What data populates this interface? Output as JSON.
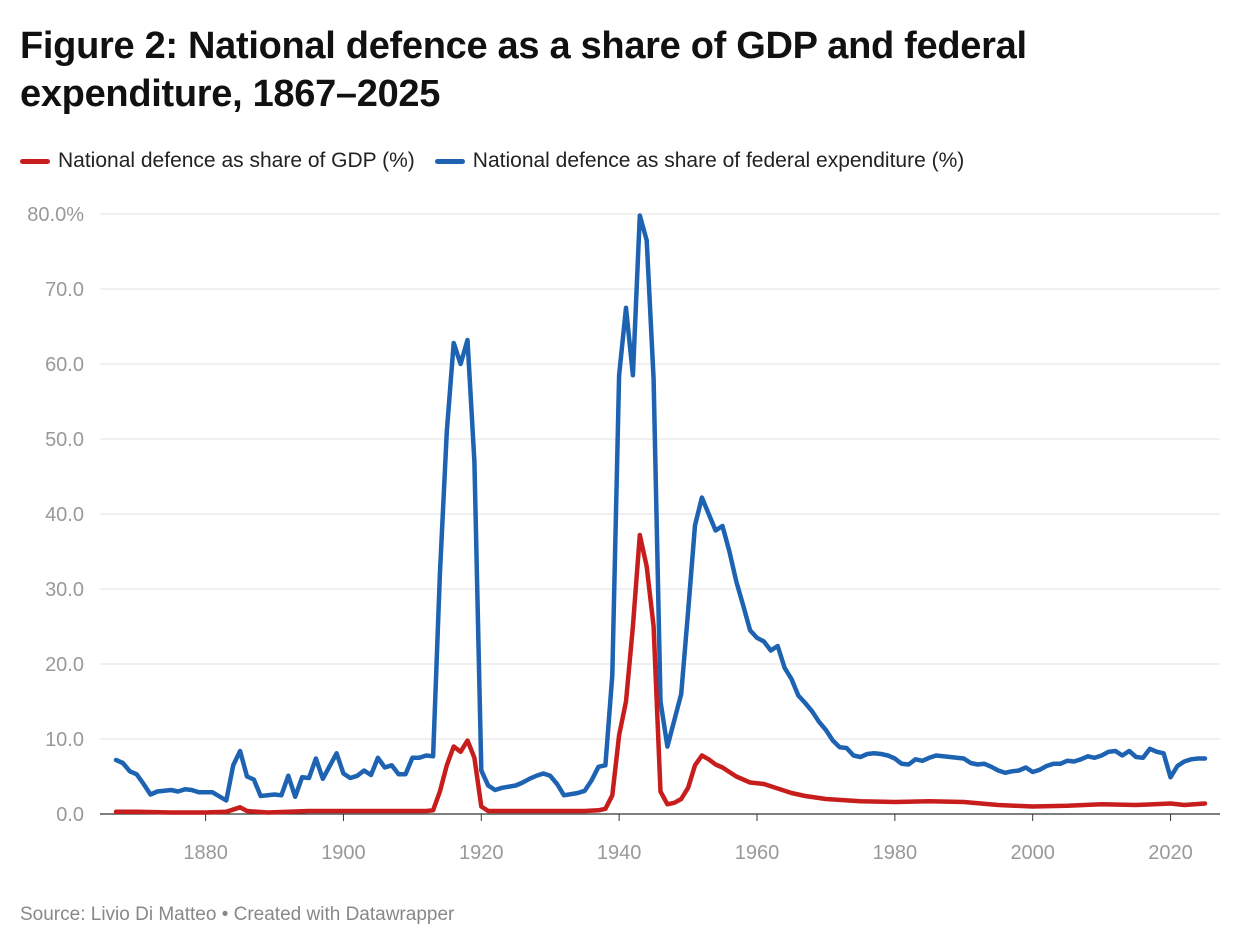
{
  "title": "Figure 2: National defence as a share of GDP and federal expenditure, 1867–2025",
  "source": "Source: Livio Di Matteo • Created with Datawrapper",
  "chart_data": {
    "type": "line",
    "title": "Figure 2: National defence as a share of GDP and federal expenditure, 1867–2025",
    "xlim": [
      1867,
      2025
    ],
    "ylim": [
      0,
      80
    ],
    "grid": true,
    "legend": "top-left",
    "xticks": [
      1880,
      1900,
      1920,
      1940,
      1960,
      1980,
      2000,
      2020
    ],
    "yticks": [
      {
        "v": 0,
        "label": "0.0"
      },
      {
        "v": 10,
        "label": "10.0"
      },
      {
        "v": 20,
        "label": "20.0"
      },
      {
        "v": 30,
        "label": "30.0"
      },
      {
        "v": 40,
        "label": "40.0"
      },
      {
        "v": 50,
        "label": "50.0"
      },
      {
        "v": 60,
        "label": "60.0"
      },
      {
        "v": 70,
        "label": "70.0"
      },
      {
        "v": 80,
        "label": "80.0%"
      }
    ],
    "series": [
      {
        "name": "National defence as share of GDP (%)",
        "color": "#c71e1d",
        "points": [
          [
            1867,
            0.3
          ],
          [
            1870,
            0.3
          ],
          [
            1875,
            0.2
          ],
          [
            1880,
            0.2
          ],
          [
            1883,
            0.3
          ],
          [
            1885,
            0.9
          ],
          [
            1886,
            0.4
          ],
          [
            1889,
            0.2
          ],
          [
            1892,
            0.3
          ],
          [
            1895,
            0.4
          ],
          [
            1900,
            0.4
          ],
          [
            1905,
            0.4
          ],
          [
            1910,
            0.4
          ],
          [
            1912,
            0.4
          ],
          [
            1913,
            0.5
          ],
          [
            1914,
            3.0
          ],
          [
            1915,
            6.5
          ],
          [
            1916,
            9.0
          ],
          [
            1917,
            8.3
          ],
          [
            1918,
            9.8
          ],
          [
            1919,
            7.5
          ],
          [
            1920,
            1.0
          ],
          [
            1921,
            0.4
          ],
          [
            1925,
            0.4
          ],
          [
            1930,
            0.4
          ],
          [
            1935,
            0.4
          ],
          [
            1937,
            0.5
          ],
          [
            1938,
            0.7
          ],
          [
            1939,
            2.5
          ],
          [
            1940,
            10.5
          ],
          [
            1941,
            15.0
          ],
          [
            1942,
            25.0
          ],
          [
            1943,
            37.2
          ],
          [
            1944,
            33.0
          ],
          [
            1945,
            25.0
          ],
          [
            1946,
            3.0
          ],
          [
            1947,
            1.3
          ],
          [
            1948,
            1.5
          ],
          [
            1949,
            2.0
          ],
          [
            1950,
            3.5
          ],
          [
            1951,
            6.5
          ],
          [
            1952,
            7.8
          ],
          [
            1953,
            7.3
          ],
          [
            1954,
            6.6
          ],
          [
            1955,
            6.2
          ],
          [
            1957,
            5.0
          ],
          [
            1959,
            4.2
          ],
          [
            1961,
            4.0
          ],
          [
            1963,
            3.4
          ],
          [
            1965,
            2.8
          ],
          [
            1967,
            2.4
          ],
          [
            1970,
            2.0
          ],
          [
            1975,
            1.7
          ],
          [
            1980,
            1.6
          ],
          [
            1985,
            1.7
          ],
          [
            1990,
            1.6
          ],
          [
            1995,
            1.2
          ],
          [
            2000,
            1.0
          ],
          [
            2005,
            1.1
          ],
          [
            2010,
            1.3
          ],
          [
            2015,
            1.2
          ],
          [
            2020,
            1.4
          ],
          [
            2022,
            1.2
          ],
          [
            2025,
            1.4
          ]
        ]
      },
      {
        "name": "National defence as share of federal expenditure (%)",
        "color": "#1d63b2",
        "points": [
          [
            1867,
            7.2
          ],
          [
            1868,
            6.8
          ],
          [
            1869,
            5.7
          ],
          [
            1870,
            5.3
          ],
          [
            1871,
            4.0
          ],
          [
            1872,
            2.6
          ],
          [
            1873,
            3.0
          ],
          [
            1875,
            3.2
          ],
          [
            1876,
            3.0
          ],
          [
            1877,
            3.3
          ],
          [
            1878,
            3.2
          ],
          [
            1879,
            2.9
          ],
          [
            1881,
            2.9
          ],
          [
            1883,
            1.8
          ],
          [
            1884,
            6.5
          ],
          [
            1885,
            8.4
          ],
          [
            1886,
            5.0
          ],
          [
            1887,
            4.6
          ],
          [
            1888,
            2.4
          ],
          [
            1889,
            2.5
          ],
          [
            1890,
            2.6
          ],
          [
            1891,
            2.5
          ],
          [
            1892,
            5.1
          ],
          [
            1893,
            2.3
          ],
          [
            1894,
            4.9
          ],
          [
            1895,
            4.8
          ],
          [
            1896,
            7.4
          ],
          [
            1897,
            4.7
          ],
          [
            1898,
            6.4
          ],
          [
            1899,
            8.1
          ],
          [
            1900,
            5.4
          ],
          [
            1901,
            4.8
          ],
          [
            1902,
            5.1
          ],
          [
            1903,
            5.8
          ],
          [
            1904,
            5.2
          ],
          [
            1905,
            7.5
          ],
          [
            1906,
            6.2
          ],
          [
            1907,
            6.5
          ],
          [
            1908,
            5.3
          ],
          [
            1909,
            5.3
          ],
          [
            1910,
            7.5
          ],
          [
            1911,
            7.5
          ],
          [
            1912,
            7.8
          ],
          [
            1913,
            7.7
          ],
          [
            1914,
            32.0
          ],
          [
            1915,
            51.0
          ],
          [
            1916,
            62.8
          ],
          [
            1917,
            60.0
          ],
          [
            1918,
            63.2
          ],
          [
            1919,
            47.0
          ],
          [
            1920,
            5.8
          ],
          [
            1921,
            3.8
          ],
          [
            1922,
            3.2
          ],
          [
            1923,
            3.5
          ],
          [
            1925,
            3.8
          ],
          [
            1926,
            4.2
          ],
          [
            1927,
            4.7
          ],
          [
            1928,
            5.1
          ],
          [
            1929,
            5.4
          ],
          [
            1930,
            5.1
          ],
          [
            1931,
            4.0
          ],
          [
            1932,
            2.5
          ],
          [
            1934,
            2.8
          ],
          [
            1935,
            3.1
          ],
          [
            1936,
            4.5
          ],
          [
            1937,
            6.3
          ],
          [
            1938,
            6.5
          ],
          [
            1939,
            18.5
          ],
          [
            1940,
            58.5
          ],
          [
            1941,
            67.5
          ],
          [
            1942,
            58.5
          ],
          [
            1943,
            79.8
          ],
          [
            1944,
            76.5
          ],
          [
            1945,
            58.0
          ],
          [
            1946,
            15.0
          ],
          [
            1947,
            9.0
          ],
          [
            1948,
            12.5
          ],
          [
            1949,
            16.0
          ],
          [
            1950,
            27.0
          ],
          [
            1951,
            38.5
          ],
          [
            1952,
            42.2
          ],
          [
            1953,
            40.0
          ],
          [
            1954,
            37.8
          ],
          [
            1955,
            38.4
          ],
          [
            1956,
            35.0
          ],
          [
            1957,
            31.0
          ],
          [
            1958,
            27.8
          ],
          [
            1959,
            24.5
          ],
          [
            1960,
            23.5
          ],
          [
            1961,
            23.0
          ],
          [
            1962,
            21.8
          ],
          [
            1963,
            22.4
          ],
          [
            1964,
            19.5
          ],
          [
            1965,
            18.0
          ],
          [
            1966,
            15.8
          ],
          [
            1967,
            14.8
          ],
          [
            1968,
            13.7
          ],
          [
            1969,
            12.3
          ],
          [
            1970,
            11.2
          ],
          [
            1971,
            9.8
          ],
          [
            1972,
            8.9
          ],
          [
            1973,
            8.8
          ],
          [
            1974,
            7.8
          ],
          [
            1975,
            7.6
          ],
          [
            1976,
            8.0
          ],
          [
            1977,
            8.1
          ],
          [
            1978,
            8.0
          ],
          [
            1979,
            7.8
          ],
          [
            1980,
            7.4
          ],
          [
            1981,
            6.7
          ],
          [
            1982,
            6.6
          ],
          [
            1983,
            7.3
          ],
          [
            1984,
            7.1
          ],
          [
            1985,
            7.5
          ],
          [
            1986,
            7.8
          ],
          [
            1988,
            7.6
          ],
          [
            1990,
            7.4
          ],
          [
            1991,
            6.8
          ],
          [
            1992,
            6.6
          ],
          [
            1993,
            6.7
          ],
          [
            1994,
            6.3
          ],
          [
            1995,
            5.8
          ],
          [
            1996,
            5.5
          ],
          [
            1997,
            5.7
          ],
          [
            1998,
            5.8
          ],
          [
            1999,
            6.2
          ],
          [
            2000,
            5.6
          ],
          [
            2001,
            5.9
          ],
          [
            2002,
            6.4
          ],
          [
            2003,
            6.7
          ],
          [
            2004,
            6.7
          ],
          [
            2005,
            7.1
          ],
          [
            2006,
            7.0
          ],
          [
            2007,
            7.3
          ],
          [
            2008,
            7.7
          ],
          [
            2009,
            7.5
          ],
          [
            2010,
            7.8
          ],
          [
            2011,
            8.3
          ],
          [
            2012,
            8.4
          ],
          [
            2013,
            7.8
          ],
          [
            2014,
            8.4
          ],
          [
            2015,
            7.6
          ],
          [
            2016,
            7.5
          ],
          [
            2017,
            8.7
          ],
          [
            2018,
            8.3
          ],
          [
            2019,
            8.1
          ],
          [
            2020,
            4.9
          ],
          [
            2021,
            6.4
          ],
          [
            2022,
            7.0
          ],
          [
            2023,
            7.3
          ],
          [
            2024,
            7.4
          ],
          [
            2025,
            7.4
          ]
        ]
      }
    ]
  }
}
